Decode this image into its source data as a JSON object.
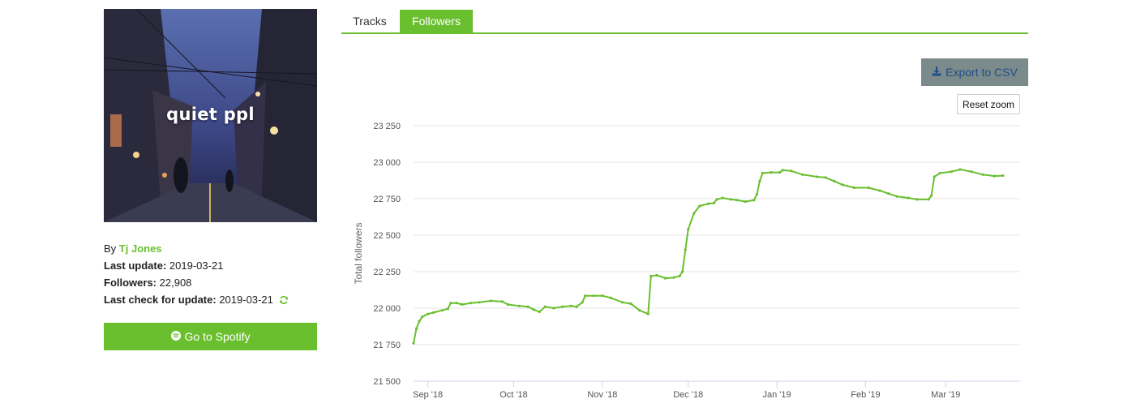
{
  "cover": {
    "title": "quiet ppl"
  },
  "meta": {
    "by_label": "By",
    "artist": "Tj Jones",
    "last_update_label": "Last update:",
    "last_update": "2019-03-21",
    "followers_label": "Followers:",
    "followers": "22,908",
    "last_check_label": "Last check for update:",
    "last_check": "2019-03-21"
  },
  "spotify_button": {
    "label": "Go to Spotify",
    "icon": "spotify-icon"
  },
  "tabs": [
    {
      "label": "Tracks",
      "active": false
    },
    {
      "label": "Followers",
      "active": true
    }
  ],
  "export_button": {
    "label": "Export to CSV",
    "icon": "download-icon"
  },
  "reset_zoom_label": "Reset zoom",
  "colors": {
    "accent": "#6abf2f",
    "export_bg": "#7b8a8b",
    "export_text": "#1d4e89"
  },
  "chart_data": {
    "type": "line",
    "ylabel": "Total followers",
    "ylim": [
      21500,
      23250
    ],
    "yticks": [
      21500,
      21750,
      22000,
      22250,
      22500,
      22750,
      23000,
      23250
    ],
    "ytick_labels": [
      "21 500",
      "21 750",
      "22 000",
      "22 250",
      "22 500",
      "22 750",
      "23 000",
      "23 250"
    ],
    "xlim": [
      "2018-08-27",
      "2019-03-27"
    ],
    "xticks": [
      "2018-09-01",
      "2018-10-01",
      "2018-11-01",
      "2018-12-01",
      "2019-01-01",
      "2019-02-01",
      "2019-03-01"
    ],
    "xtick_labels": [
      "Sep '18",
      "Oct '18",
      "Nov '18",
      "Dec '18",
      "Jan '19",
      "Feb '19",
      "Mar '19"
    ],
    "grid": true,
    "series": [
      {
        "color": "#6abf2f",
        "points": [
          [
            "2018-08-27",
            21760
          ],
          [
            "2018-08-28",
            21860
          ],
          [
            "2018-08-29",
            21910
          ],
          [
            "2018-08-30",
            21940
          ],
          [
            "2018-09-01",
            21960
          ],
          [
            "2018-09-03",
            21970
          ],
          [
            "2018-09-06",
            21985
          ],
          [
            "2018-09-08",
            21995
          ],
          [
            "2018-09-09",
            22035
          ],
          [
            "2018-09-11",
            22035
          ],
          [
            "2018-09-13",
            22025
          ],
          [
            "2018-09-16",
            22035
          ],
          [
            "2018-09-19",
            22040
          ],
          [
            "2018-09-23",
            22050
          ],
          [
            "2018-09-27",
            22045
          ],
          [
            "2018-09-29",
            22025
          ],
          [
            "2018-10-03",
            22015
          ],
          [
            "2018-10-06",
            22010
          ],
          [
            "2018-10-08",
            21990
          ],
          [
            "2018-10-10",
            21975
          ],
          [
            "2018-10-12",
            22010
          ],
          [
            "2018-10-15",
            22000
          ],
          [
            "2018-10-18",
            22010
          ],
          [
            "2018-10-21",
            22015
          ],
          [
            "2018-10-23",
            22010
          ],
          [
            "2018-10-25",
            22040
          ],
          [
            "2018-10-26",
            22085
          ],
          [
            "2018-10-29",
            22085
          ],
          [
            "2018-11-01",
            22085
          ],
          [
            "2018-11-04",
            22070
          ],
          [
            "2018-11-08",
            22040
          ],
          [
            "2018-11-11",
            22030
          ],
          [
            "2018-11-14",
            21985
          ],
          [
            "2018-11-17",
            21960
          ],
          [
            "2018-11-18",
            22220
          ],
          [
            "2018-11-20",
            22225
          ],
          [
            "2018-11-23",
            22205
          ],
          [
            "2018-11-26",
            22210
          ],
          [
            "2018-11-28",
            22220
          ],
          [
            "2018-11-29",
            22250
          ],
          [
            "2018-11-30",
            22400
          ],
          [
            "2018-12-01",
            22540
          ],
          [
            "2018-12-03",
            22650
          ],
          [
            "2018-12-05",
            22700
          ],
          [
            "2018-12-08",
            22715
          ],
          [
            "2018-12-10",
            22720
          ],
          [
            "2018-12-11",
            22745
          ],
          [
            "2018-12-13",
            22755
          ],
          [
            "2018-12-16",
            22745
          ],
          [
            "2018-12-18",
            22740
          ],
          [
            "2018-12-21",
            22730
          ],
          [
            "2018-12-24",
            22740
          ],
          [
            "2018-12-25",
            22780
          ],
          [
            "2018-12-26",
            22870
          ],
          [
            "2018-12-27",
            22925
          ],
          [
            "2018-12-30",
            22930
          ],
          [
            "2019-01-02",
            22930
          ],
          [
            "2019-01-03",
            22945
          ],
          [
            "2019-01-06",
            22940
          ],
          [
            "2019-01-10",
            22915
          ],
          [
            "2019-01-15",
            22900
          ],
          [
            "2019-01-18",
            22895
          ],
          [
            "2019-01-21",
            22870
          ],
          [
            "2019-01-24",
            22845
          ],
          [
            "2019-01-28",
            22825
          ],
          [
            "2019-02-02",
            22825
          ],
          [
            "2019-02-06",
            22805
          ],
          [
            "2019-02-09",
            22785
          ],
          [
            "2019-02-12",
            22765
          ],
          [
            "2019-02-16",
            22755
          ],
          [
            "2019-02-19",
            22745
          ],
          [
            "2019-02-23",
            22745
          ],
          [
            "2019-02-24",
            22770
          ],
          [
            "2019-02-25",
            22900
          ],
          [
            "2019-02-27",
            22925
          ],
          [
            "2019-03-03",
            22935
          ],
          [
            "2019-03-06",
            22950
          ],
          [
            "2019-03-10",
            22935
          ],
          [
            "2019-03-14",
            22915
          ],
          [
            "2019-03-18",
            22905
          ],
          [
            "2019-03-21",
            22908
          ]
        ]
      }
    ]
  }
}
